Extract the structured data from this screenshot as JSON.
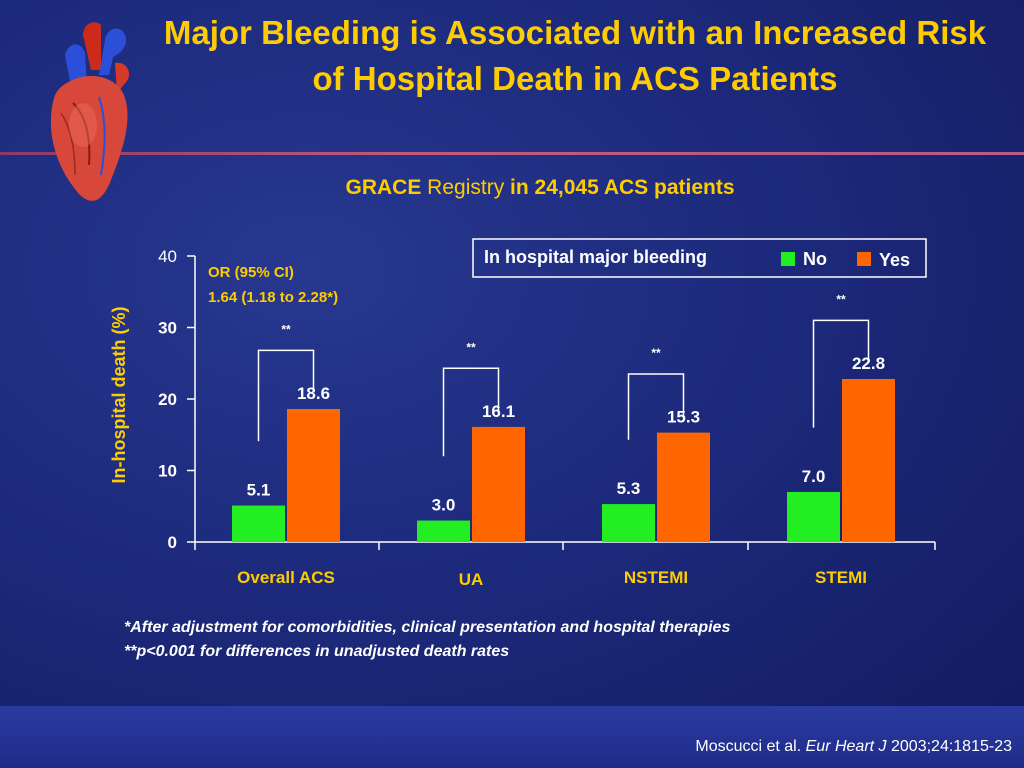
{
  "title": "Major Bleeding is Associated with an Increased Risk of Hospital Death in ACS Patients",
  "subtitle": {
    "part1": "GRACE",
    "part2": "Registry",
    "part3": "in 24,045 ACS patients"
  },
  "chart_data": {
    "type": "bar",
    "categories": [
      "Overall ACS",
      "UA",
      "NSTEMI",
      "STEMI"
    ],
    "series": [
      {
        "name": "No",
        "color": "#22ee22",
        "values": [
          5.1,
          3.0,
          5.3,
          7.0
        ],
        "labels": [
          "5.1",
          "3.0",
          "5.3",
          "7.0"
        ]
      },
      {
        "name": "Yes",
        "color": "#ff6600",
        "values": [
          18.6,
          16.1,
          15.3,
          22.8
        ],
        "labels": [
          "18.6",
          "16.1",
          "15.3",
          "22.8"
        ]
      }
    ],
    "legend_title": "In hospital major bleeding",
    "ylabel": "In-hospital death (%)",
    "ylim": [
      0,
      40
    ],
    "yticks": [
      0,
      10,
      20,
      30,
      40
    ],
    "ytick_labels": [
      "0",
      "10",
      "20",
      "30",
      "40"
    ],
    "significance_marks": [
      "**",
      "**",
      "**",
      "**"
    ],
    "annotation": {
      "line1": "OR (95% CI)",
      "line2": "1.64 (1.18 to 2.28*)"
    }
  },
  "footnotes": [
    "*After adjustment for comorbidities, clinical presentation and hospital therapies",
    "**p<0.001 for differences in unadjusted death rates"
  ],
  "citation": {
    "authors": "Moscucci et al.",
    "journal": "Eur Heart J",
    "details": "2003;24:1815-23"
  }
}
